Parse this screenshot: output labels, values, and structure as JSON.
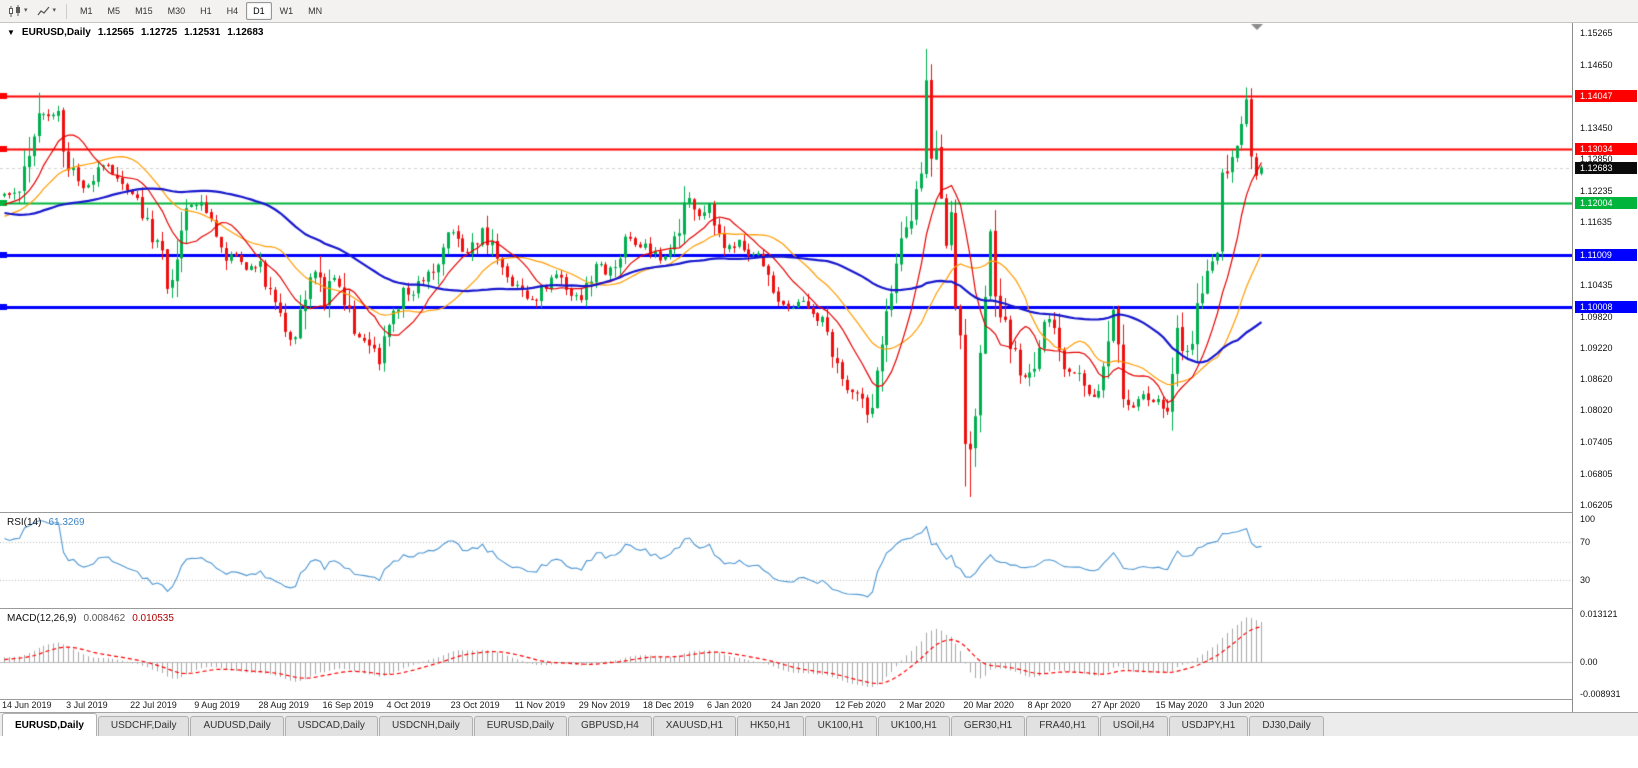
{
  "toolbar": {
    "icons": [
      {
        "name": "candlestick-chart-icon",
        "glyph": "candlestick-chart"
      },
      {
        "name": "chart-type-caret-icon",
        "glyph": "▾"
      },
      {
        "name": "line-chart-icon",
        "glyph": "line-chart"
      },
      {
        "name": "template-caret-icon",
        "glyph": "▾"
      }
    ],
    "timeframes": [
      {
        "label": "M1",
        "active": false
      },
      {
        "label": "M5",
        "active": false
      },
      {
        "label": "M15",
        "active": false
      },
      {
        "label": "M30",
        "active": false
      },
      {
        "label": "H1",
        "active": false
      },
      {
        "label": "H4",
        "active": false
      },
      {
        "label": "D1",
        "active": true
      },
      {
        "label": "W1",
        "active": false
      },
      {
        "label": "MN",
        "active": false
      }
    ]
  },
  "chart": {
    "title": {
      "expand_glyph": "▼",
      "symbol": "EURUSD,Daily",
      "open": "1.12565",
      "high": "1.12725",
      "low": "1.12531",
      "close": "1.12683"
    },
    "price_axis_ticks": [
      "1.15265",
      "1.14650",
      "1.13450",
      "1.12850",
      "1.12235",
      "1.11635",
      "1.10435",
      "1.09820",
      "1.09220",
      "1.08620",
      "1.08020",
      "1.07405",
      "1.06805",
      "1.06205"
    ],
    "lines": [
      {
        "label": "1.14047",
        "price": 1.14047,
        "color": "#ff0000",
        "width": 2
      },
      {
        "label": "1.13034",
        "price": 1.13034,
        "color": "#ff0000",
        "width": 2
      },
      {
        "label": "1.12004",
        "price": 1.12004,
        "color": "#00b43c",
        "width": 2
      },
      {
        "label": "1.11009",
        "price": 1.11009,
        "color": "#0000ff",
        "width": 3
      },
      {
        "label": "1.10008",
        "price": 1.10008,
        "color": "#0000ff",
        "width": 3
      }
    ],
    "bid": {
      "label": "1.12683",
      "price": 1.12683,
      "box_color": "#0a0a0a"
    }
  },
  "rsi_panel": {
    "label": "RSI(14)",
    "value": "61.3269",
    "levels": [
      {
        "label": "100",
        "value": 100
      },
      {
        "label": "70",
        "value": 70
      },
      {
        "label": "30",
        "value": 30
      }
    ]
  },
  "macd_panel": {
    "label": "MACD(12,26,9)",
    "main_value": "0.008462",
    "signal_value": "0.010535",
    "levels": [
      {
        "label": "0.013121",
        "value": 0.013121
      },
      {
        "label": "0.00",
        "value": 0
      },
      {
        "label": "-0.008931",
        "value": -0.008931
      }
    ]
  },
  "date_axis": [
    "14 Jun 2019",
    "3 Jul 2019",
    "22 Jul 2019",
    "9 Aug 2019",
    "28 Aug 2019",
    "16 Sep 2019",
    "4 Oct 2019",
    "23 Oct 2019",
    "11 Nov 2019",
    "29 Nov 2019",
    "18 Dec 2019",
    "6 Jan 2020",
    "24 Jan 2020",
    "12 Feb 2020",
    "2 Mar 2020",
    "20 Mar 2020",
    "8 Apr 2020",
    "27 Apr 2020",
    "15 May 2020",
    "3 Jun 2020"
  ],
  "tabs": [
    {
      "label": "EURUSD,Daily",
      "active": true
    },
    {
      "label": "USDCHF,Daily",
      "active": false
    },
    {
      "label": "AUDUSD,Daily",
      "active": false
    },
    {
      "label": "USDCAD,Daily",
      "active": false
    },
    {
      "label": "USDCNH,Daily",
      "active": false
    },
    {
      "label": "EURUSD,Daily",
      "active": false
    },
    {
      "label": "GBPUSD,H4",
      "active": false
    },
    {
      "label": "XAUUSD,H1",
      "active": false
    },
    {
      "label": "HK50,H1",
      "active": false
    },
    {
      "label": "UK100,H1",
      "active": false
    },
    {
      "label": "UK100,H1",
      "active": false
    },
    {
      "label": "GER30,H1",
      "active": false
    },
    {
      "label": "FRA40,H1",
      "active": false
    },
    {
      "label": "USOil,H4",
      "active": false
    },
    {
      "label": "USDJPY,H1",
      "active": false
    },
    {
      "label": "DJ30,Daily",
      "active": false
    }
  ],
  "chart_data": {
    "type": "candlestick",
    "symbol": "EURUSD",
    "timeframe": "Daily",
    "visible_ohlc": {
      "open": 1.12565,
      "high": 1.12725,
      "low": 1.12531,
      "close": 1.12683
    },
    "price_range": [
      1.06205,
      1.15265
    ],
    "index_range": [
      -60,
      255
    ],
    "candles_per_date_tick": 13,
    "horizontal_levels": [
      1.14047,
      1.13034,
      1.12004,
      1.11009,
      1.10008
    ],
    "last_ohlc": [
      1.12565,
      1.12725,
      1.12531,
      1.12683
    ],
    "ma_periods": {
      "fast": 10,
      "mid": 21,
      "slow": 50
    },
    "macd_range": [
      -0.008931,
      0.013121
    ],
    "indicators": {
      "rsi": {
        "period": 14,
        "current": 61.3269,
        "levels": [
          30,
          70
        ]
      },
      "macd": {
        "fast": 12,
        "slow": 26,
        "signal": 9,
        "current_main": 0.008462,
        "current_signal": 0.010535
      }
    },
    "colors": {
      "up": "#00b050",
      "down": "#ee1010",
      "ma_fast": "#e60000",
      "ma_mid": "#ff9c00",
      "ma_slow": "#1717cd",
      "rsi": "#4f97d2",
      "macd_hist": "#a8a8a8",
      "macd_signal": "#ff0000"
    },
    "price_path": [
      [
        -60,
        1.1235
      ],
      [
        -50,
        1.1292
      ],
      [
        -42,
        1.1228
      ],
      [
        -33,
        1.1165
      ],
      [
        -24,
        1.1118
      ],
      [
        -16,
        1.1152
      ],
      [
        -8,
        1.1185
      ],
      [
        -3,
        1.12
      ],
      [
        0,
        1.1215
      ],
      [
        3,
        1.1232
      ],
      [
        5,
        1.13
      ],
      [
        7,
        1.1382
      ],
      [
        9,
        1.1368
      ],
      [
        11,
        1.1368
      ],
      [
        13,
        1.1282
      ],
      [
        15,
        1.1248
      ],
      [
        16,
        1.1228
      ],
      [
        18,
        1.1252
      ],
      [
        20,
        1.1272
      ],
      [
        22,
        1.126
      ],
      [
        24,
        1.1228
      ],
      [
        26,
        1.1215
      ],
      [
        28,
        1.1182
      ],
      [
        30,
        1.1128
      ],
      [
        32,
        1.1118
      ],
      [
        33,
        1.1048
      ],
      [
        34,
        1.1072
      ],
      [
        35,
        1.1108
      ],
      [
        36,
        1.1152
      ],
      [
        37,
        1.1198
      ],
      [
        39,
        1.1202
      ],
      [
        41,
        1.1182
      ],
      [
        43,
        1.1152
      ],
      [
        45,
        1.1098
      ],
      [
        47,
        1.1092
      ],
      [
        49,
        1.1078
      ],
      [
        52,
        1.1082
      ],
      [
        54,
        1.1028
      ],
      [
        56,
        1.0988
      ],
      [
        58,
        1.0935
      ],
      [
        60,
        1.0982
      ],
      [
        61,
        1.1038
      ],
      [
        63,
        1.1072
      ],
      [
        65,
        1.1008
      ],
      [
        67,
        1.1062
      ],
      [
        68,
        1.1042
      ],
      [
        70,
        1.0988
      ],
      [
        71,
        1.0948
      ],
      [
        73,
        1.0942
      ],
      [
        75,
        1.0922
      ],
      [
        76,
        1.0895
      ],
      [
        77,
        1.0932
      ],
      [
        78,
        1.0978
      ],
      [
        80,
        1.1002
      ],
      [
        81,
        1.1032
      ],
      [
        83,
        1.1018
      ],
      [
        84,
        1.1042
      ],
      [
        86,
        1.1058
      ],
      [
        88,
        1.1092
      ],
      [
        90,
        1.1152
      ],
      [
        92,
        1.1128
      ],
      [
        94,
        1.1102
      ],
      [
        95,
        1.1112
      ],
      [
        97,
        1.1152
      ],
      [
        99,
        1.1108
      ],
      [
        100,
        1.1078
      ],
      [
        102,
        1.1052
      ],
      [
        104,
        1.1038
      ],
      [
        106,
        1.1018
      ],
      [
        107,
        1.1012
      ],
      [
        109,
        1.1032
      ],
      [
        111,
        1.1052
      ],
      [
        113,
        1.1062
      ],
      [
        115,
        1.1022
      ],
      [
        117,
        1.1018
      ],
      [
        119,
        1.1062
      ],
      [
        120,
        1.1082
      ],
      [
        122,
        1.1068
      ],
      [
        124,
        1.1088
      ],
      [
        126,
        1.1132
      ],
      [
        128,
        1.1122
      ],
      [
        130,
        1.1118
      ],
      [
        132,
        1.1098
      ],
      [
        133,
        1.1092
      ],
      [
        135,
        1.1112
      ],
      [
        137,
        1.1152
      ],
      [
        139,
        1.1212
      ],
      [
        141,
        1.1172
      ],
      [
        143,
        1.1196
      ],
      [
        145,
        1.1142
      ],
      [
        146,
        1.1112
      ],
      [
        148,
        1.1122
      ],
      [
        149,
        1.1132
      ],
      [
        151,
        1.1108
      ],
      [
        153,
        1.1092
      ],
      [
        155,
        1.1048
      ],
      [
        156,
        1.1028
      ],
      [
        158,
        1.1008
      ],
      [
        160,
        1.1002
      ],
      [
        162,
        1.1012
      ],
      [
        164,
        1.0992
      ],
      [
        166,
        1.0972
      ],
      [
        168,
        1.0918
      ],
      [
        169,
        1.0878
      ],
      [
        171,
        1.0852
      ],
      [
        173,
        1.0832
      ],
      [
        175,
        1.0795
      ],
      [
        176,
        1.0812
      ],
      [
        177,
        1.0858
      ],
      [
        178,
        1.0912
      ],
      [
        179,
        1.0988
      ],
      [
        180,
        1.1032
      ],
      [
        181,
        1.1062
      ],
      [
        182,
        1.1138
      ],
      [
        183,
        1.1148
      ],
      [
        184,
        1.1172
      ],
      [
        185,
        1.1222
      ],
      [
        186,
        1.1282
      ],
      [
        187,
        1.1442
      ],
      [
        188,
        1.1292
      ],
      [
        189,
        1.1332
      ],
      [
        190,
        1.1188
      ],
      [
        191,
        1.1112
      ],
      [
        192,
        1.1182
      ],
      [
        193,
        1.1002
      ],
      [
        194,
        1.0922
      ],
      [
        195,
        1.0712
      ],
      [
        196,
        1.0732
      ],
      [
        197,
        1.0792
      ],
      [
        198,
        1.0888
      ],
      [
        199,
        1.1032
      ],
      [
        200,
        1.1142
      ],
      [
        201,
        1.1038
      ],
      [
        202,
        1.1002
      ],
      [
        203,
        1.0968
      ],
      [
        204,
        1.0932
      ],
      [
        205,
        1.0908
      ],
      [
        206,
        1.0878
      ],
      [
        207,
        1.0868
      ],
      [
        208,
        1.0868
      ],
      [
        209,
        1.0898
      ],
      [
        210,
        1.0932
      ],
      [
        211,
        1.0958
      ],
      [
        212,
        1.0982
      ],
      [
        213,
        1.0948
      ],
      [
        214,
        1.0918
      ],
      [
        215,
        1.0892
      ],
      [
        216,
        1.0878
      ],
      [
        217,
        1.0872
      ],
      [
        218,
        1.0868
      ],
      [
        219,
        1.0842
      ],
      [
        220,
        1.0828
      ],
      [
        221,
        1.0838
      ],
      [
        222,
        1.0852
      ],
      [
        223,
        1.0878
      ],
      [
        224,
        1.0932
      ],
      [
        225,
        1.0988
      ],
      [
        226,
        1.0918
      ],
      [
        227,
        1.0848
      ],
      [
        228,
        1.0822
      ],
      [
        229,
        1.0808
      ],
      [
        230,
        1.0822
      ],
      [
        231,
        1.0838
      ],
      [
        232,
        1.0828
      ],
      [
        233,
        1.0818
      ],
      [
        234,
        1.0828
      ],
      [
        235,
        1.0812
      ],
      [
        236,
        1.0798
      ],
      [
        237,
        1.0872
      ],
      [
        238,
        1.0958
      ],
      [
        239,
        1.0932
      ],
      [
        240,
        1.0908
      ],
      [
        241,
        1.0952
      ],
      [
        242,
        1.1008
      ],
      [
        243,
        1.1048
      ],
      [
        244,
        1.1088
      ],
      [
        245,
        1.1098
      ],
      [
        246,
        1.1108
      ],
      [
        247,
        1.1238
      ],
      [
        248,
        1.1262
      ],
      [
        249,
        1.1298
      ],
      [
        250,
        1.1322
      ],
      [
        251,
        1.1348
      ],
      [
        252,
        1.1392
      ],
      [
        253,
        1.1308
      ],
      [
        254,
        1.1262
      ],
      [
        255,
        1.12683
      ]
    ],
    "wick_overrides": [
      [
        7,
        "high",
        1.1412
      ],
      [
        58,
        "low",
        1.0926
      ],
      [
        76,
        "low",
        1.0879
      ],
      [
        175,
        "low",
        1.0778
      ],
      [
        187,
        "high",
        1.1496
      ],
      [
        195,
        "low",
        1.0656
      ],
      [
        196,
        "low",
        1.0636
      ],
      [
        200,
        "high",
        1.1148
      ],
      [
        252,
        "high",
        1.1422
      ]
    ]
  }
}
